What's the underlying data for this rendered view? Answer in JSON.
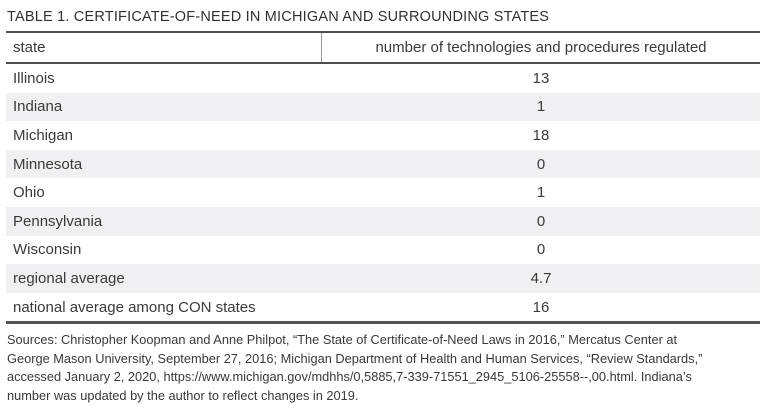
{
  "title": "TABLE 1. CERTIFICATE-OF-NEED IN MICHIGAN AND SURROUNDING STATES",
  "table": {
    "columns": [
      "state",
      "number of technologies and procedures regulated"
    ],
    "rows": [
      {
        "state": "Illinois",
        "value": "13"
      },
      {
        "state": "Indiana",
        "value": "1"
      },
      {
        "state": "Michigan",
        "value": "18"
      },
      {
        "state": "Minnesota",
        "value": "0"
      },
      {
        "state": "Ohio",
        "value": "1"
      },
      {
        "state": "Pennsylvania",
        "value": "0"
      },
      {
        "state": "Wisconsin",
        "value": "0"
      },
      {
        "state": "regional average",
        "value": "4.7"
      },
      {
        "state": "national average among CON states",
        "value": "16"
      }
    ]
  },
  "sources": {
    "lines": [
      "Sources: Christopher Koopman and Anne Philpot, “The State of Certificate-of-Need Laws in 2016,” Mercatus Center at",
      "George Mason University, September 27, 2016; Michigan Department of Health and Human Services, “Review Standards,”",
      "accessed January 2, 2020, https://www.michigan.gov/mdhhs/0,5885,7-339-71551_2945_5106-25558--,00.html. Indiana’s",
      "number was updated by the author to reflect changes in 2019."
    ]
  },
  "colors": {
    "row_shading": "#f0eff1",
    "rule_dark": "#4d4e50",
    "text": "#3a3a3c"
  },
  "chart_data": {
    "type": "table",
    "title": "TABLE 1. CERTIFICATE-OF-NEED IN MICHIGAN AND SURROUNDING STATES",
    "categories": [
      "Illinois",
      "Indiana",
      "Michigan",
      "Minnesota",
      "Ohio",
      "Pennsylvania",
      "Wisconsin",
      "regional average",
      "national average among CON states"
    ],
    "values": [
      13,
      1,
      18,
      0,
      1,
      0,
      0,
      4.7,
      16
    ],
    "xlabel": "state",
    "ylabel": "number of technologies and procedures regulated"
  }
}
